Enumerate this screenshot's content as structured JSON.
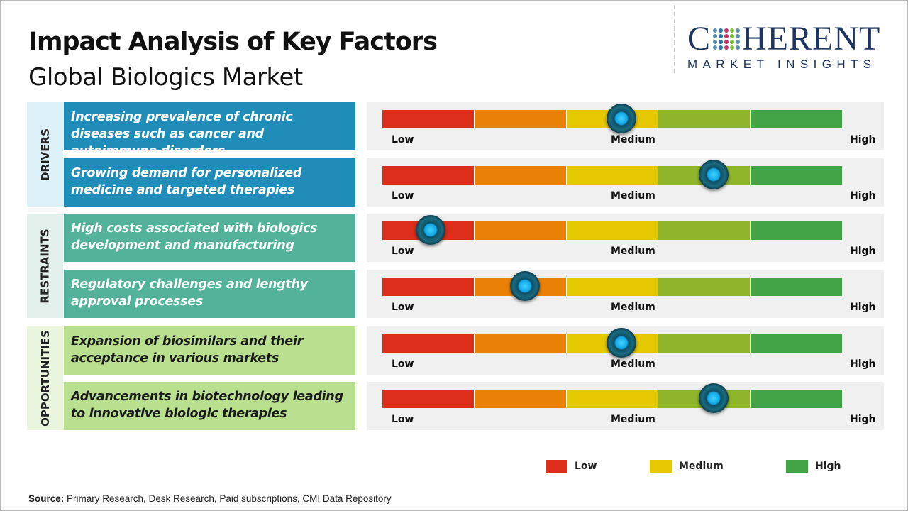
{
  "header": {
    "title": "Impact Analysis of Key Factors",
    "subtitle": "Global Biologics Market"
  },
  "logo": {
    "line1_a": "C",
    "line1_b": "HERENT",
    "line2": "MARKET INSIGHTS"
  },
  "scale": {
    "low": "Low",
    "medium": "Medium",
    "high": "High"
  },
  "colors": {
    "segments": [
      "#dc2e1a",
      "#e98106",
      "#e6c800",
      "#8fb52a",
      "#43a447"
    ],
    "drivers": "#1f8db8",
    "drivers_label_bg": "#dcf0f8",
    "restraints": "#52b39a",
    "restraints_label_bg": "#e2efeb",
    "opportunities": "#b8e08f",
    "opportunities_label_bg": "#e9f5dd"
  },
  "groups": [
    {
      "label": "DRIVERS",
      "key": "drivers",
      "text_color": "#ffffff",
      "factors": [
        {
          "text": "Increasing prevalence of chronic diseases such as cancer and autoimmune disorders",
          "impact": 0.52
        },
        {
          "text": "Growing demand for personalized medicine and targeted therapies",
          "impact": 0.72
        }
      ]
    },
    {
      "label": "RESTRAINTS",
      "key": "restraints",
      "text_color": "#ffffff",
      "factors": [
        {
          "text": "High costs associated with biologics development and manufacturing",
          "impact": 0.105
        },
        {
          "text": "Regulatory challenges and lengthy approval processes",
          "impact": 0.31
        }
      ]
    },
    {
      "label": "OPPORTUNITIES",
      "key": "opportunities",
      "text_color": "#1a1a1a",
      "factors": [
        {
          "text": "Expansion of biosimilars and their acceptance in various markets",
          "impact": 0.52
        },
        {
          "text": "Advancements in biotechnology leading to innovative biologic therapies",
          "impact": 0.72
        }
      ]
    }
  ],
  "legend": [
    {
      "label": "Low",
      "color": "#dc2e1a"
    },
    {
      "label": "Medium",
      "color": "#e6c800"
    },
    {
      "label": "High",
      "color": "#43a447"
    }
  ],
  "source": {
    "label": "Source:",
    "text": " Primary Research, Desk Research, Paid subscriptions, CMI Data Repository"
  }
}
